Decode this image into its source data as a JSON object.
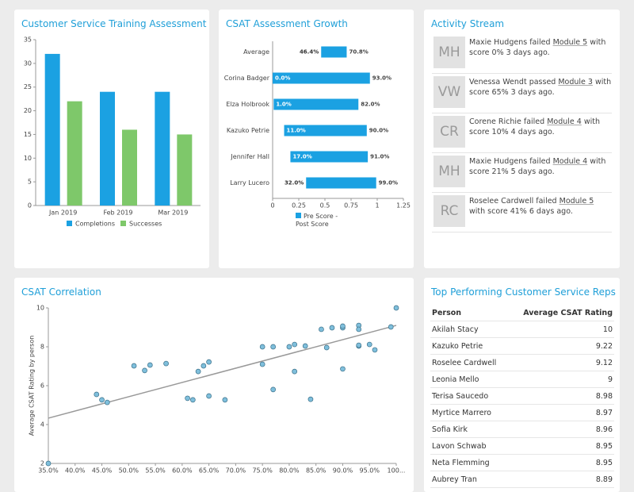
{
  "chart_data": [
    {
      "type": "bar",
      "title": "Customer Service Training Assessment",
      "categories": [
        "Jan 2019",
        "Feb 2019",
        "Mar 2019"
      ],
      "series": [
        {
          "name": "Completions",
          "color": "#1ba1e2",
          "values": [
            32,
            24,
            24
          ]
        },
        {
          "name": "Successes",
          "color": "#7ec86a",
          "values": [
            22,
            16,
            15
          ]
        }
      ],
      "ylim": [
        0,
        35
      ],
      "yticks": [
        0,
        5,
        10,
        15,
        20,
        25,
        30,
        35
      ],
      "grid": false
    },
    {
      "type": "range-bar",
      "title": "CSAT Assessment Growth",
      "categories": [
        "Average",
        "Corina Badger",
        "Elza Holbrook",
        "Kazuko Petrie",
        "Jennifer Hall",
        "Larry Lucero"
      ],
      "series": [
        {
          "name": "Pre Score - Post Score",
          "color": "#1ba1e2",
          "low": [
            0.464,
            0.0,
            0.01,
            0.11,
            0.17,
            0.32
          ],
          "high": [
            0.708,
            0.93,
            0.82,
            0.9,
            0.91,
            0.99
          ],
          "low_labels": [
            "46.4%",
            "0.0%",
            "1.0%",
            "11.0%",
            "17.0%",
            "32.0%"
          ],
          "high_labels": [
            "70.8%",
            "93.0%",
            "82.0%",
            "90.0%",
            "91.0%",
            "99.0%"
          ]
        }
      ],
      "xlim": [
        0,
        1.25
      ],
      "xticks": [
        0,
        0.25,
        0.5,
        0.75,
        1,
        1.25
      ]
    },
    {
      "type": "scatter",
      "title": "CSAT Correlation",
      "ylabel": "Average CSAT Rating by person",
      "series": [
        {
          "color": "#7fbfdc",
          "x": [
            0.35,
            0.44,
            0.45,
            0.46,
            0.51,
            0.53,
            0.54,
            0.57,
            0.61,
            0.62,
            0.63,
            0.64,
            0.65,
            0.65,
            0.68,
            0.75,
            0.75,
            0.77,
            0.77,
            0.8,
            0.81,
            0.81,
            0.83,
            0.84,
            0.86,
            0.87,
            0.88,
            0.9,
            0.9,
            0.9,
            0.93,
            0.93,
            0.93,
            0.93,
            0.95,
            0.96,
            0.99,
            1.0
          ],
          "y": [
            2.0,
            5.55,
            5.27,
            5.14,
            7.02,
            6.78,
            7.06,
            7.14,
            5.35,
            5.27,
            6.73,
            7.02,
            7.22,
            5.47,
            5.27,
            8.0,
            7.1,
            8.0,
            5.8,
            8.0,
            8.12,
            6.73,
            8.04,
            5.3,
            8.9,
            7.96,
            8.98,
            8.98,
            9.06,
            6.86,
            9.1,
            8.9,
            8.04,
            8.08,
            8.12,
            7.84,
            9.02,
            10.0
          ]
        }
      ],
      "trendline": {
        "color": "#999999",
        "x": [
          0.35,
          1.0
        ],
        "y": [
          4.33,
          9.1
        ]
      },
      "xlim": [
        0.35,
        1.0
      ],
      "ylim": [
        2,
        10
      ],
      "xticks": [
        {
          "value": 0.35,
          "label": "35.0%"
        },
        {
          "value": 0.4,
          "label": "40.0%"
        },
        {
          "value": 0.45,
          "label": "45.0%"
        },
        {
          "value": 0.5,
          "label": "50.0%"
        },
        {
          "value": 0.55,
          "label": "55.0%"
        },
        {
          "value": 0.6,
          "label": "60.0%"
        },
        {
          "value": 0.65,
          "label": "65.0%"
        },
        {
          "value": 0.7,
          "label": "70.0%"
        },
        {
          "value": 0.75,
          "label": "75.0%"
        },
        {
          "value": 0.8,
          "label": "80.0%"
        },
        {
          "value": 0.85,
          "label": "85.0%"
        },
        {
          "value": 0.9,
          "label": "90.0%"
        },
        {
          "value": 0.95,
          "label": "95.0%"
        },
        {
          "value": 1.0,
          "label": "100..."
        }
      ],
      "yticks": [
        2,
        4,
        6,
        8,
        10
      ]
    }
  ],
  "activity": {
    "title": "Activity Stream",
    "items": [
      {
        "initials": "MH",
        "text": "Maxie Hudgens failed",
        "module": "Module 5",
        "detail": "with score 0% 3 days ago."
      },
      {
        "initials": "VW",
        "text": "Venessa Wendt passed",
        "module": "Module 3",
        "detail": "with score 65% 3 days ago."
      },
      {
        "initials": "CR",
        "text": "Corene Richie failed",
        "module": "Module 4",
        "detail": "with score 10% 4 days ago."
      },
      {
        "initials": "MH",
        "text": "Maxie Hudgens failed",
        "module": "Module 4",
        "detail": "with score 21% 5 days ago."
      },
      {
        "initials": "RC",
        "text": "Roselee Cardwell failed",
        "module": "Module 5",
        "detail": "with score 41% 6 days ago."
      }
    ]
  },
  "table": {
    "title": "Top Performing Customer Service Reps",
    "header": [
      "Person",
      "Average CSAT Rating"
    ],
    "rows": [
      [
        "Akilah Stacy",
        10
      ],
      [
        "Kazuko Petrie",
        9.22
      ],
      [
        "Roselee Cardwell",
        9.12
      ],
      [
        "Leonia Mello",
        9
      ],
      [
        "Terisa Saucedo",
        8.98
      ],
      [
        "Myrtice Marrero",
        8.97
      ],
      [
        "Sofia Kirk",
        8.96
      ],
      [
        "Lavon Schwab",
        8.95
      ],
      [
        "Neta Flemming",
        8.95
      ],
      [
        "Aubrey Tran",
        8.89
      ]
    ]
  }
}
